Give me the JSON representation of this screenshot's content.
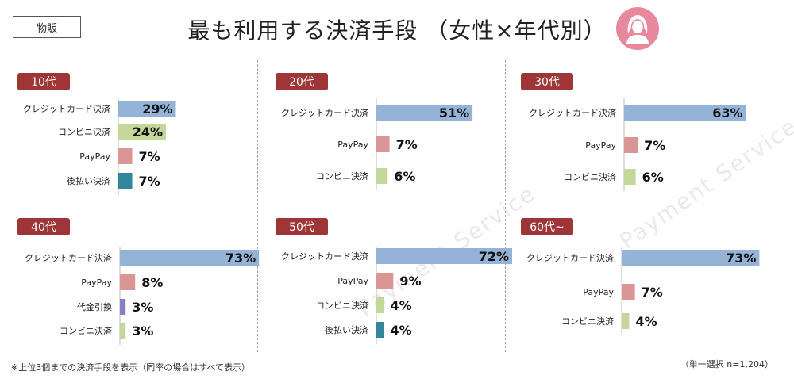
{
  "category_tag": "物販",
  "title": "最も利用する決済手段 （女性×年代別）",
  "footnote": "※上位3個までの決済手段を表示（同率の場合はすべて表示）",
  "sample_note": "（単一選択 n=1,204）",
  "watermark": "Payment Service",
  "colors": {
    "credit": "#95b3d7",
    "conveni": "#c4d79b",
    "paypay": "#da9694",
    "deferred": "#31859c",
    "cod": "#8a7fc4",
    "badge": "#9e3537",
    "icon": "#e8889d"
  },
  "chart_data": [
    {
      "type": "bar",
      "orientation": "horizontal",
      "title": "10代",
      "categories": [
        "クレジットカード決済",
        "コンビニ決済",
        "PayPay",
        "後払い決済"
      ],
      "values": [
        29,
        24,
        7,
        7
      ],
      "labels": [
        "29%",
        "24%",
        "7%",
        "7%"
      ],
      "series_keys": [
        "credit",
        "conveni",
        "paypay",
        "deferred"
      ],
      "unit": "%",
      "xlim": [
        0,
        80
      ]
    },
    {
      "type": "bar",
      "orientation": "horizontal",
      "title": "20代",
      "categories": [
        "クレジットカード決済",
        "PayPay",
        "コンビニ決済"
      ],
      "values": [
        51,
        7,
        6
      ],
      "labels": [
        "51%",
        "7%",
        "6%"
      ],
      "series_keys": [
        "credit",
        "paypay",
        "conveni"
      ],
      "unit": "%",
      "xlim": [
        0,
        80
      ]
    },
    {
      "type": "bar",
      "orientation": "horizontal",
      "title": "30代",
      "categories": [
        "クレジットカード決済",
        "PayPay",
        "コンビニ決済"
      ],
      "values": [
        63,
        7,
        6
      ],
      "labels": [
        "63%",
        "7%",
        "6%"
      ],
      "series_keys": [
        "credit",
        "paypay",
        "conveni"
      ],
      "unit": "%",
      "xlim": [
        0,
        80
      ]
    },
    {
      "type": "bar",
      "orientation": "horizontal",
      "title": "40代",
      "categories": [
        "クレジットカード決済",
        "PayPay",
        "代金引換",
        "コンビニ決済"
      ],
      "values": [
        73,
        8,
        3,
        3
      ],
      "labels": [
        "73%",
        "8%",
        "3%",
        "3%"
      ],
      "series_keys": [
        "credit",
        "paypay",
        "cod",
        "conveni"
      ],
      "unit": "%",
      "xlim": [
        0,
        80
      ]
    },
    {
      "type": "bar",
      "orientation": "horizontal",
      "title": "50代",
      "categories": [
        "クレジットカード決済",
        "PayPay",
        "コンビニ決済",
        "後払い決済"
      ],
      "values": [
        72,
        9,
        4,
        4
      ],
      "labels": [
        "72%",
        "9%",
        "4%",
        "4%"
      ],
      "series_keys": [
        "credit",
        "paypay",
        "conveni",
        "deferred"
      ],
      "unit": "%",
      "xlim": [
        0,
        80
      ]
    },
    {
      "type": "bar",
      "orientation": "horizontal",
      "title": "60代~",
      "categories": [
        "クレジットカード決済",
        "PayPay",
        "コンビニ決済"
      ],
      "values": [
        73,
        7,
        4
      ],
      "labels": [
        "73%",
        "7%",
        "4%"
      ],
      "series_keys": [
        "credit",
        "paypay",
        "conveni"
      ],
      "unit": "%",
      "xlim": [
        0,
        80
      ]
    }
  ]
}
